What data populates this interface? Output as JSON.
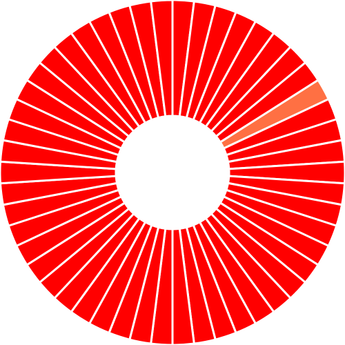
{
  "chart_data": {
    "type": "donut",
    "values": [
      2,
      2,
      2,
      2,
      2,
      2,
      2,
      2,
      2,
      2,
      2,
      2,
      2,
      2,
      2,
      2,
      2,
      2,
      2,
      2,
      2,
      2,
      2,
      2,
      2,
      2,
      2,
      2,
      2,
      2,
      2,
      2,
      2,
      2,
      2,
      2,
      2,
      2,
      2,
      2,
      2,
      2,
      2,
      2,
      2,
      2,
      2,
      2,
      2,
      2
    ],
    "colors": [
      "#ff0000",
      "#ff0000",
      "#ff0000",
      "#ff0000",
      "#ff0000",
      "#ff0000",
      "#ff0000",
      "#ff0000",
      "#ff7043",
      "#ff0000",
      "#ff0000",
      "#ff0000",
      "#ff0000",
      "#ff0000",
      "#ff0000",
      "#ff0000",
      "#ff0000",
      "#ff0000",
      "#ff0000",
      "#ff0000",
      "#ff0000",
      "#ff0000",
      "#ff0000",
      "#ff0000",
      "#ff0000",
      "#ff0000",
      "#ff0000",
      "#ff0000",
      "#ff0000",
      "#ff0000",
      "#ff0000",
      "#ff0000",
      "#ff0000",
      "#ff0000",
      "#ff0000",
      "#ff0000",
      "#ff0000",
      "#ff0000",
      "#ff0000",
      "#ff0000",
      "#ff0000",
      "#ff0000",
      "#ff0000",
      "#ff0000",
      "#ff0000",
      "#ff0000",
      "#ff0000",
      "#ff0000",
      "#ff0000",
      "#ff0000"
    ]
  }
}
